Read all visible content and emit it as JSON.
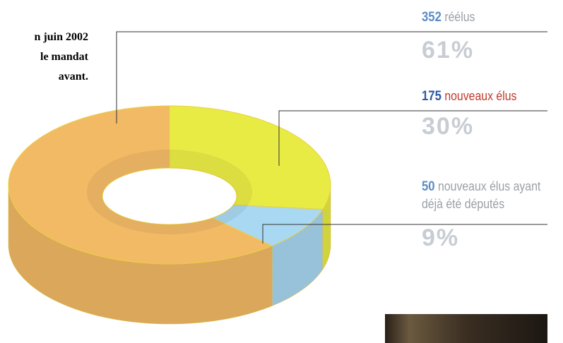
{
  "chart_data": {
    "type": "donut",
    "title_lines": [
      "n juin 2002",
      "le mandat",
      "avant."
    ],
    "categories": [
      "réélus",
      "nouveaux élus",
      "nouveaux élus ayant déjà été députés"
    ],
    "counts": [
      352,
      175,
      50
    ],
    "values": [
      61,
      30,
      9
    ],
    "value_labels": [
      "61%",
      "30%",
      "9%"
    ],
    "colors": [
      "#f3ba66",
      "#e9eb45",
      "#a9d8f2"
    ],
    "count_colors": [
      "#5b8cc8",
      "#2a5aa5",
      "#5b8cc8"
    ],
    "label_colors": [
      "#9aa0a6",
      "#c0392b",
      "#9aa0a6"
    ]
  }
}
